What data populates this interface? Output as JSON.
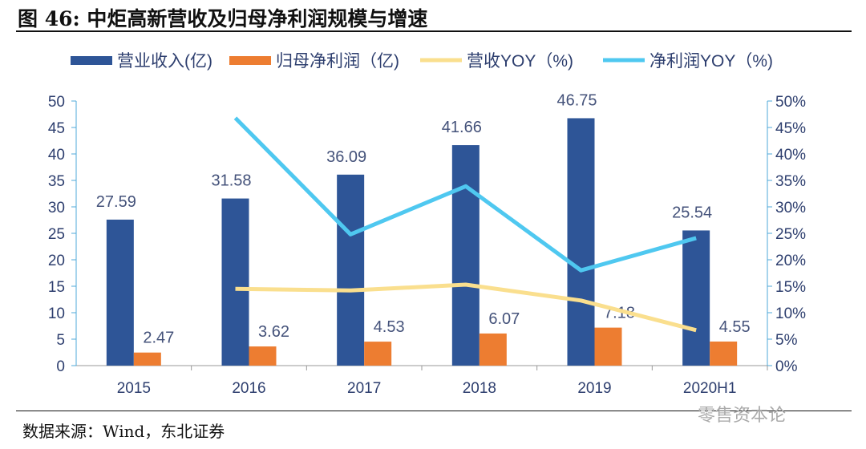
{
  "title": "图 46: 中炬高新营收及归母净利润规模与增速",
  "source": "数据来源：Wind，东北证券",
  "watermark": "零售资本论",
  "chart_data": {
    "type": "bar+line",
    "categories": [
      "2015",
      "2016",
      "2017",
      "2018",
      "2019",
      "2020H1"
    ],
    "series": [
      {
        "name": "营业收入(亿)",
        "type": "bar",
        "axis": "left",
        "color": "#2E5597",
        "values": [
          27.59,
          31.58,
          36.09,
          41.66,
          46.75,
          25.54
        ]
      },
      {
        "name": "归母净利润（亿)",
        "type": "bar",
        "axis": "left",
        "color": "#ED7D31",
        "values": [
          2.47,
          3.62,
          4.53,
          6.07,
          7.18,
          4.55
        ]
      },
      {
        "name": "营收YOY（%)",
        "type": "line",
        "axis": "right",
        "color": "#FADF8E",
        "values": [
          null,
          14.5,
          14.2,
          15.3,
          12.3,
          6.7
        ]
      },
      {
        "name": "净利润YOY（%)",
        "type": "line",
        "axis": "right",
        "color": "#4FC8F0",
        "values": [
          null,
          46.8,
          24.8,
          33.9,
          18.0,
          24.1
        ]
      }
    ],
    "left_axis": {
      "min": 0,
      "max": 50,
      "ticks": [
        "0",
        "5",
        "10",
        "15",
        "20",
        "25",
        "30",
        "35",
        "40",
        "45",
        "50"
      ]
    },
    "right_axis": {
      "min": 0,
      "max": 50,
      "ticks": [
        "0%",
        "5%",
        "10%",
        "15%",
        "20%",
        "25%",
        "30%",
        "35%",
        "40%",
        "45%",
        "50%"
      ]
    },
    "legend": "top",
    "grid": false
  }
}
